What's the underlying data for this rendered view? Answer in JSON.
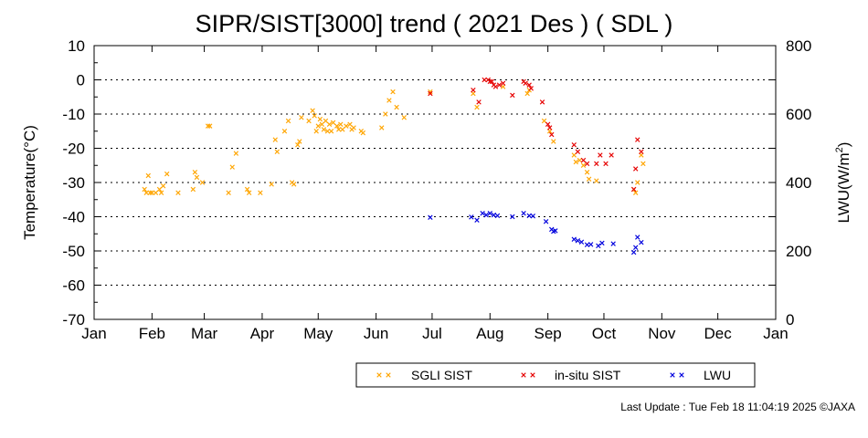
{
  "title": "SIPR/SIST[3000] trend ( 2021 Des ) ( SDL )",
  "footer": "Last Update : Tue Feb 18 11:04:19 2025  ©JAXA",
  "chart_data": {
    "type": "scatter",
    "title": "SIPR/SIST[3000] trend ( 2021 Des ) ( SDL )",
    "ylabel": "Temperature(°C)",
    "y2label_main": "LWU(W/m",
    "y2label_sup": "2",
    "y2label_close": ")",
    "ylim": [
      -70,
      10
    ],
    "y2lim": [
      0,
      800
    ],
    "yticks": [
      "10",
      "0",
      "-10",
      "-20",
      "-30",
      "-40",
      "-50",
      "-60",
      "-70"
    ],
    "y2ticks": [
      "800",
      "600",
      "400",
      "200",
      "0"
    ],
    "xlim": [
      "2021-01-01",
      "2022-01-01"
    ],
    "xticks": [
      {
        "date": "2021-01-01",
        "label": "Jan"
      },
      {
        "date": "2021-02-01",
        "label": "Feb"
      },
      {
        "date": "2021-03-01",
        "label": "Mar"
      },
      {
        "date": "2021-04-01",
        "label": "Apr"
      },
      {
        "date": "2021-05-01",
        "label": "May"
      },
      {
        "date": "2021-06-01",
        "label": "Jun"
      },
      {
        "date": "2021-07-01",
        "label": "Jul"
      },
      {
        "date": "2021-08-01",
        "label": "Aug"
      },
      {
        "date": "2021-09-01",
        "label": "Sep"
      },
      {
        "date": "2021-10-01",
        "label": "Oct"
      },
      {
        "date": "2021-11-01",
        "label": "Nov"
      },
      {
        "date": "2021-12-01",
        "label": "Dec"
      },
      {
        "date": "2022-01-01",
        "label": "Jan"
      }
    ],
    "grid": "horizontal dotted",
    "legend_position": "bottom",
    "series": [
      {
        "name": "SGLI SIST",
        "color": "#ffa500",
        "axis": "left",
        "points": [
          [
            "2021-01-28",
            -32
          ],
          [
            "2021-01-29",
            -33
          ],
          [
            "2021-01-30",
            -28
          ],
          [
            "2021-01-31",
            -33
          ],
          [
            "2021-02-01",
            -33
          ],
          [
            "2021-02-03",
            -33
          ],
          [
            "2021-02-05",
            -32
          ],
          [
            "2021-02-06",
            -33
          ],
          [
            "2021-02-07",
            -31
          ],
          [
            "2021-02-09",
            -27.5
          ],
          [
            "2021-02-15",
            -33
          ],
          [
            "2021-02-23",
            -32
          ],
          [
            "2021-02-24",
            -27
          ],
          [
            "2021-02-25",
            -28.5
          ],
          [
            "2021-02-28",
            -30
          ],
          [
            "2021-03-03",
            -13.5
          ],
          [
            "2021-03-04",
            -13.5
          ],
          [
            "2021-03-14",
            -33
          ],
          [
            "2021-03-16",
            -25.5
          ],
          [
            "2021-03-18",
            -21.5
          ],
          [
            "2021-03-24",
            -32
          ],
          [
            "2021-03-25",
            -33
          ],
          [
            "2021-03-31",
            -33
          ],
          [
            "2021-04-06",
            -30.5
          ],
          [
            "2021-04-08",
            -17.5
          ],
          [
            "2021-04-09",
            -21
          ],
          [
            "2021-04-13",
            -15
          ],
          [
            "2021-04-15",
            -12
          ],
          [
            "2021-04-17",
            -30
          ],
          [
            "2021-04-18",
            -30.5
          ],
          [
            "2021-04-20",
            -19
          ],
          [
            "2021-04-21",
            -18
          ],
          [
            "2021-04-22",
            -11
          ],
          [
            "2021-04-26",
            -12
          ],
          [
            "2021-04-28",
            -9
          ],
          [
            "2021-04-29",
            -10.5
          ],
          [
            "2021-04-30",
            -15
          ],
          [
            "2021-05-01",
            -13.5
          ],
          [
            "2021-05-02",
            -11.5
          ],
          [
            "2021-05-03",
            -13
          ],
          [
            "2021-05-04",
            -14.5
          ],
          [
            "2021-05-05",
            -12
          ],
          [
            "2021-05-06",
            -15
          ],
          [
            "2021-05-07",
            -13
          ],
          [
            "2021-05-08",
            -15
          ],
          [
            "2021-05-09",
            -12.5
          ],
          [
            "2021-05-11",
            -13.5
          ],
          [
            "2021-05-12",
            -14.5
          ],
          [
            "2021-05-13",
            -13
          ],
          [
            "2021-05-14",
            -14.5
          ],
          [
            "2021-05-16",
            -13.5
          ],
          [
            "2021-05-18",
            -13
          ],
          [
            "2021-05-19",
            -14.5
          ],
          [
            "2021-05-20",
            -14
          ],
          [
            "2021-05-24",
            -15
          ],
          [
            "2021-05-25",
            -15.5
          ],
          [
            "2021-06-04",
            -14
          ],
          [
            "2021-06-06",
            -10
          ],
          [
            "2021-06-08",
            -6
          ],
          [
            "2021-06-10",
            -3.5
          ],
          [
            "2021-06-12",
            -8
          ],
          [
            "2021-06-16",
            -11
          ],
          [
            "2021-06-30",
            -3.5
          ],
          [
            "2021-07-23",
            -4
          ],
          [
            "2021-07-25",
            -8
          ],
          [
            "2021-08-08",
            -2
          ],
          [
            "2021-08-21",
            -4
          ],
          [
            "2021-08-22",
            -3
          ],
          [
            "2021-08-30",
            -12
          ],
          [
            "2021-09-02",
            -15
          ],
          [
            "2021-09-04",
            -18
          ],
          [
            "2021-09-15",
            -22
          ],
          [
            "2021-09-16",
            -24
          ],
          [
            "2021-09-18",
            -23.5
          ],
          [
            "2021-09-20",
            -25
          ],
          [
            "2021-09-22",
            -27
          ],
          [
            "2021-09-23",
            -29
          ],
          [
            "2021-09-27",
            -29.5
          ],
          [
            "2021-10-17",
            -32
          ],
          [
            "2021-10-18",
            -33
          ],
          [
            "2021-10-19",
            -30
          ],
          [
            "2021-10-21",
            -22
          ],
          [
            "2021-10-22",
            -24.5
          ]
        ]
      },
      {
        "name": "in-situ SIST",
        "color": "#e60000",
        "axis": "left",
        "points": [
          [
            "2021-06-30",
            -4
          ],
          [
            "2021-07-23",
            -3
          ],
          [
            "2021-07-26",
            -6.5
          ],
          [
            "2021-07-29",
            0
          ],
          [
            "2021-07-31",
            0
          ],
          [
            "2021-08-01",
            -0.5
          ],
          [
            "2021-08-02",
            -0.5
          ],
          [
            "2021-08-03",
            -1.5
          ],
          [
            "2021-08-04",
            -2
          ],
          [
            "2021-08-06",
            -1.5
          ],
          [
            "2021-08-08",
            -1
          ],
          [
            "2021-08-13",
            -4.5
          ],
          [
            "2021-08-19",
            -0.5
          ],
          [
            "2021-08-20",
            -1
          ],
          [
            "2021-08-22",
            -1.5
          ],
          [
            "2021-08-23",
            -2.5
          ],
          [
            "2021-08-29",
            -6.5
          ],
          [
            "2021-09-01",
            -13
          ],
          [
            "2021-09-02",
            -14
          ],
          [
            "2021-09-03",
            -16
          ],
          [
            "2021-09-15",
            -19
          ],
          [
            "2021-09-17",
            -21
          ],
          [
            "2021-09-20",
            -23.5
          ],
          [
            "2021-09-22",
            -24.5
          ],
          [
            "2021-09-27",
            -24.5
          ],
          [
            "2021-09-29",
            -22
          ],
          [
            "2021-10-02",
            -24.5
          ],
          [
            "2021-10-05",
            -22
          ],
          [
            "2021-10-17",
            -32
          ],
          [
            "2021-10-18",
            -26
          ],
          [
            "2021-10-19",
            -17.5
          ],
          [
            "2021-10-21",
            -21
          ]
        ]
      },
      {
        "name": "LWU",
        "color": "#0000dd",
        "axis": "right",
        "points": [
          [
            "2021-06-30",
            298
          ],
          [
            "2021-07-22",
            299
          ],
          [
            "2021-07-25",
            290
          ],
          [
            "2021-07-28",
            310
          ],
          [
            "2021-07-30",
            305
          ],
          [
            "2021-08-01",
            310
          ],
          [
            "2021-08-03",
            305
          ],
          [
            "2021-08-05",
            303
          ],
          [
            "2021-08-13",
            300
          ],
          [
            "2021-08-19",
            310
          ],
          [
            "2021-08-22",
            303
          ],
          [
            "2021-08-24",
            302
          ],
          [
            "2021-08-31",
            286
          ],
          [
            "2021-09-03",
            263
          ],
          [
            "2021-09-04",
            257
          ],
          [
            "2021-09-05",
            259
          ],
          [
            "2021-09-15",
            234
          ],
          [
            "2021-09-17",
            230
          ],
          [
            "2021-09-19",
            226
          ],
          [
            "2021-09-22",
            218
          ],
          [
            "2021-09-24",
            219
          ],
          [
            "2021-09-28",
            215
          ],
          [
            "2021-09-30",
            223
          ],
          [
            "2021-10-06",
            221
          ],
          [
            "2021-10-17",
            196
          ],
          [
            "2021-10-18",
            210
          ],
          [
            "2021-10-19",
            240
          ],
          [
            "2021-10-21",
            225
          ]
        ]
      }
    ]
  }
}
